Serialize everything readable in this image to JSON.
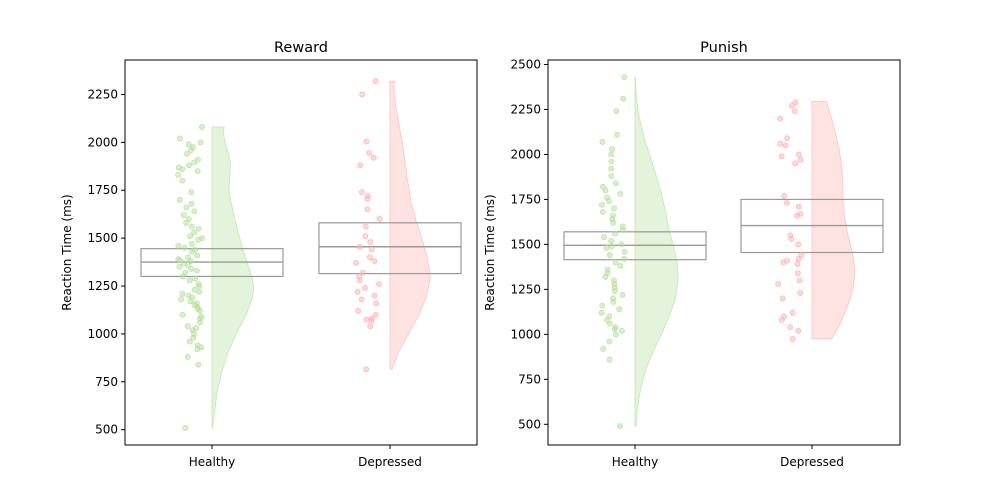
{
  "colors": {
    "healthy": "#b3e09a",
    "depressed": "#ffb0b0",
    "box": "#999999",
    "axis": "#000000"
  },
  "chart_data": [
    {
      "type": "raincloud",
      "title": "Reward",
      "ylabel": "Reaction Time (ms)",
      "xlabel": "",
      "ylim": [
        420,
        2430
      ],
      "yticks": [
        500,
        750,
        1000,
        1250,
        1500,
        1750,
        2000,
        2250
      ],
      "categories": [
        "Healthy",
        "Depressed"
      ],
      "grid": false,
      "groups": [
        {
          "category": "Healthy",
          "box": {
            "q1": 1300,
            "median": 1375,
            "q3": 1445
          },
          "density": {
            "min": 510,
            "max": 2080,
            "points": [
              [
                510,
                0.02
              ],
              [
                600,
                0.06
              ],
              [
                700,
                0.12
              ],
              [
                800,
                0.22
              ],
              [
                900,
                0.36
              ],
              [
                1000,
                0.55
              ],
              [
                1100,
                0.78
              ],
              [
                1200,
                0.93
              ],
              [
                1250,
                0.95
              ],
              [
                1300,
                0.9
              ],
              [
                1400,
                0.76
              ],
              [
                1500,
                0.63
              ],
              [
                1600,
                0.52
              ],
              [
                1700,
                0.42
              ],
              [
                1750,
                0.38
              ],
              [
                1800,
                0.4
              ],
              [
                1900,
                0.42
              ],
              [
                2000,
                0.3
              ],
              [
                2060,
                0.25
              ],
              [
                2080,
                0.28
              ]
            ]
          },
          "points": [
            2080,
            2020,
            2000,
            1990,
            1975,
            1960,
            1940,
            1910,
            1895,
            1880,
            1870,
            1860,
            1850,
            1830,
            1800,
            1740,
            1700,
            1680,
            1660,
            1640,
            1620,
            1600,
            1580,
            1560,
            1550,
            1530,
            1510,
            1500,
            1490,
            1470,
            1460,
            1450,
            1440,
            1430,
            1410,
            1400,
            1390,
            1385,
            1380,
            1370,
            1360,
            1350,
            1340,
            1330,
            1320,
            1300,
            1290,
            1280,
            1260,
            1250,
            1230,
            1220,
            1210,
            1200,
            1190,
            1180,
            1170,
            1160,
            1150,
            1140,
            1130,
            1120,
            1100,
            1090,
            1080,
            1060,
            1040,
            1030,
            1020,
            1000,
            980,
            960,
            940,
            930,
            920,
            880,
            840,
            510
          ]
        },
        {
          "category": "Depressed",
          "box": {
            "q1": 1315,
            "median": 1455,
            "q3": 1580
          },
          "density": {
            "min": 815,
            "max": 2320,
            "points": [
              [
                815,
                0.05
              ],
              [
                900,
                0.18
              ],
              [
                1000,
                0.42
              ],
              [
                1100,
                0.66
              ],
              [
                1200,
                0.84
              ],
              [
                1300,
                0.92
              ],
              [
                1400,
                0.85
              ],
              [
                1500,
                0.72
              ],
              [
                1600,
                0.58
              ],
              [
                1700,
                0.47
              ],
              [
                1800,
                0.4
              ],
              [
                1900,
                0.34
              ],
              [
                2000,
                0.28
              ],
              [
                2100,
                0.2
              ],
              [
                2200,
                0.12
              ],
              [
                2300,
                0.08
              ],
              [
                2320,
                0.1
              ]
            ]
          },
          "points": [
            2320,
            2250,
            2005,
            1945,
            1920,
            1880,
            1740,
            1720,
            1705,
            1650,
            1600,
            1560,
            1510,
            1480,
            1455,
            1440,
            1400,
            1380,
            1370,
            1320,
            1300,
            1280,
            1260,
            1240,
            1220,
            1200,
            1180,
            1160,
            1120,
            1100,
            1080,
            1075,
            1070,
            1040,
            815
          ]
        }
      ]
    },
    {
      "type": "raincloud",
      "title": "Punish",
      "ylabel": "Reaction Time (ms)",
      "xlabel": "",
      "ylim": [
        385,
        2525
      ],
      "yticks": [
        500,
        750,
        1000,
        1250,
        1500,
        1750,
        2000,
        2250,
        2500
      ],
      "categories": [
        "Healthy",
        "Depressed"
      ],
      "grid": false,
      "groups": [
        {
          "category": "Healthy",
          "box": {
            "q1": 1415,
            "median": 1495,
            "q3": 1570
          },
          "density": {
            "min": 490,
            "max": 2430,
            "points": [
              [
                490,
                0.02
              ],
              [
                600,
                0.06
              ],
              [
                700,
                0.13
              ],
              [
                800,
                0.24
              ],
              [
                900,
                0.4
              ],
              [
                1000,
                0.6
              ],
              [
                1100,
                0.78
              ],
              [
                1200,
                0.92
              ],
              [
                1300,
                0.98
              ],
              [
                1400,
                0.96
              ],
              [
                1500,
                0.86
              ],
              [
                1600,
                0.76
              ],
              [
                1700,
                0.68
              ],
              [
                1800,
                0.58
              ],
              [
                1900,
                0.46
              ],
              [
                2000,
                0.33
              ],
              [
                2100,
                0.2
              ],
              [
                2200,
                0.1
              ],
              [
                2300,
                0.04
              ],
              [
                2400,
                0.01
              ],
              [
                2430,
                0.01
              ]
            ]
          },
          "points": [
            2430,
            2310,
            2240,
            2110,
            2070,
            2030,
            2000,
            1960,
            1920,
            1880,
            1840,
            1820,
            1800,
            1780,
            1760,
            1740,
            1720,
            1700,
            1680,
            1660,
            1640,
            1620,
            1600,
            1580,
            1560,
            1540,
            1520,
            1500,
            1490,
            1480,
            1460,
            1440,
            1420,
            1400,
            1380,
            1360,
            1340,
            1320,
            1300,
            1280,
            1260,
            1240,
            1220,
            1200,
            1180,
            1160,
            1140,
            1120,
            1100,
            1080,
            1060,
            1040,
            1030,
            1020,
            1000,
            960,
            920,
            860,
            490
          ]
        },
        {
          "category": "Depressed",
          "box": {
            "q1": 1455,
            "median": 1605,
            "q3": 1750
          },
          "density": {
            "min": 975,
            "max": 2295,
            "points": [
              [
                975,
                0.45
              ],
              [
                1050,
                0.62
              ],
              [
                1150,
                0.8
              ],
              [
                1250,
                0.93
              ],
              [
                1350,
                0.98
              ],
              [
                1450,
                0.92
              ],
              [
                1550,
                0.82
              ],
              [
                1650,
                0.74
              ],
              [
                1750,
                0.7
              ],
              [
                1850,
                0.7
              ],
              [
                1950,
                0.67
              ],
              [
                2050,
                0.6
              ],
              [
                2150,
                0.5
              ],
              [
                2250,
                0.38
              ],
              [
                2295,
                0.34
              ]
            ]
          },
          "points": [
            2290,
            2270,
            2240,
            2200,
            2090,
            2060,
            2050,
            2000,
            1990,
            1970,
            1950,
            1770,
            1730,
            1710,
            1670,
            1660,
            1550,
            1530,
            1500,
            1440,
            1420,
            1410,
            1400,
            1390,
            1340,
            1300,
            1280,
            1230,
            1200,
            1120,
            1100,
            1080,
            1040,
            1020,
            975
          ]
        }
      ]
    }
  ]
}
